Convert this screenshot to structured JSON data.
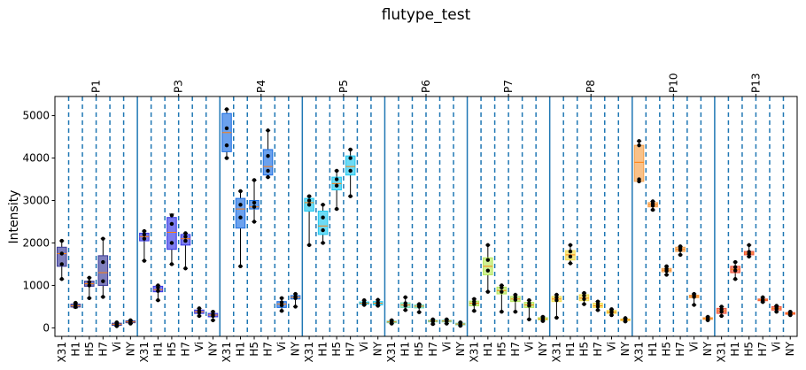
{
  "chart_data": {
    "type": "box",
    "title": "flutype_test",
    "ylabel": "Intensity",
    "xlabel": "",
    "ylim": [
      -200,
      5450
    ],
    "yticks": [
      0,
      1000,
      2000,
      3000,
      4000,
      5000
    ],
    "grid": false,
    "sample_labels": [
      "X31",
      "H1",
      "H5",
      "H7",
      "Vi",
      "NY"
    ],
    "groups": [
      {
        "name": "P1",
        "color": "#3b3b9a",
        "boxes": [
          {
            "q1": 1450,
            "median": 1750,
            "q3": 1900,
            "lo": 1150,
            "hi": 2050,
            "pts": [
              1150,
              1500,
              1750,
              2050
            ]
          },
          {
            "q1": 490,
            "median": 520,
            "q3": 560,
            "lo": 470,
            "hi": 590,
            "pts": [
              490,
              520,
              560,
              590
            ]
          },
          {
            "q1": 980,
            "median": 1040,
            "q3": 1100,
            "lo": 700,
            "hi": 1180,
            "pts": [
              700,
              1000,
              1080,
              1180
            ]
          },
          {
            "q1": 1000,
            "median": 1300,
            "q3": 1700,
            "lo": 730,
            "hi": 2100,
            "pts": [
              730,
              1100,
              1550,
              2100
            ]
          },
          {
            "q1": 60,
            "median": 85,
            "q3": 110,
            "lo": 40,
            "hi": 130,
            "pts": [
              40,
              80,
              100,
              130
            ]
          },
          {
            "q1": 120,
            "median": 140,
            "q3": 165,
            "lo": 100,
            "hi": 180,
            "pts": [
              100,
              130,
              150,
              180
            ]
          }
        ]
      },
      {
        "name": "P3",
        "color": "#3737e6",
        "boxes": [
          {
            "q1": 2050,
            "median": 2150,
            "q3": 2230,
            "lo": 1580,
            "hi": 2280,
            "pts": [
              1580,
              2100,
              2200,
              2280
            ]
          },
          {
            "q1": 850,
            "median": 900,
            "q3": 980,
            "lo": 650,
            "hi": 1000,
            "pts": [
              650,
              870,
              950,
              1000
            ]
          },
          {
            "q1": 1850,
            "median": 2250,
            "q3": 2600,
            "lo": 1500,
            "hi": 2680,
            "pts": [
              1500,
              2000,
              2450,
              2650
            ]
          },
          {
            "q1": 1950,
            "median": 2100,
            "q3": 2200,
            "lo": 1400,
            "hi": 2230,
            "pts": [
              1400,
              2050,
              2150,
              2230
            ]
          },
          {
            "q1": 340,
            "median": 380,
            "q3": 420,
            "lo": 280,
            "hi": 460,
            "pts": [
              280,
              360,
              400,
              460
            ]
          },
          {
            "q1": 260,
            "median": 300,
            "q3": 340,
            "lo": 180,
            "hi": 380,
            "pts": [
              180,
              280,
              320,
              380
            ]
          }
        ]
      },
      {
        "name": "P4",
        "color": "#1c6fe3",
        "boxes": [
          {
            "q1": 4150,
            "median": 4600,
            "q3": 5050,
            "lo": 4000,
            "hi": 5150,
            "pts": [
              4000,
              4300,
              4700,
              5150
            ]
          },
          {
            "q1": 2350,
            "median": 2800,
            "q3": 3050,
            "lo": 1450,
            "hi": 3220,
            "pts": [
              1450,
              2600,
              2900,
              3220
            ]
          },
          {
            "q1": 2800,
            "median": 2850,
            "q3": 3000,
            "lo": 2500,
            "hi": 3480,
            "pts": [
              2500,
              2850,
              2950,
              3480
            ]
          },
          {
            "q1": 3600,
            "median": 3800,
            "q3": 4200,
            "lo": 3550,
            "hi": 4650,
            "pts": [
              3550,
              3700,
              4050,
              4650
            ]
          },
          {
            "q1": 480,
            "median": 560,
            "q3": 620,
            "lo": 400,
            "hi": 700,
            "pts": [
              400,
              530,
              600,
              700
            ]
          },
          {
            "q1": 680,
            "median": 720,
            "q3": 760,
            "lo": 500,
            "hi": 800,
            "pts": [
              500,
              700,
              740,
              800
            ]
          }
        ]
      },
      {
        "name": "P5",
        "color": "#1fc8f0",
        "boxes": [
          {
            "q1": 2750,
            "median": 2950,
            "q3": 3050,
            "lo": 1950,
            "hi": 3100,
            "pts": [
              1950,
              2900,
              3000,
              3100
            ]
          },
          {
            "q1": 2200,
            "median": 2400,
            "q3": 2750,
            "lo": 2000,
            "hi": 2900,
            "pts": [
              2000,
              2300,
              2600,
              2900
            ]
          },
          {
            "q1": 3250,
            "median": 3400,
            "q3": 3550,
            "lo": 2800,
            "hi": 3700,
            "pts": [
              2800,
              3350,
              3500,
              3700
            ]
          },
          {
            "q1": 3600,
            "median": 3800,
            "q3": 4050,
            "lo": 3100,
            "hi": 4200,
            "pts": [
              3100,
              3700,
              4000,
              4200
            ]
          },
          {
            "q1": 560,
            "median": 580,
            "q3": 610,
            "lo": 540,
            "hi": 650,
            "pts": [
              540,
              570,
              600,
              650
            ]
          },
          {
            "q1": 540,
            "median": 580,
            "q3": 620,
            "lo": 520,
            "hi": 660,
            "pts": [
              520,
              560,
              600,
              660
            ]
          }
        ]
      },
      {
        "name": "P6",
        "color": "#6fe0b8",
        "boxes": [
          {
            "q1": 120,
            "median": 140,
            "q3": 160,
            "lo": 100,
            "hi": 180,
            "pts": [
              100,
              130,
              150,
              180
            ]
          },
          {
            "q1": 480,
            "median": 540,
            "q3": 590,
            "lo": 420,
            "hi": 720,
            "pts": [
              420,
              520,
              580,
              720
            ]
          },
          {
            "q1": 470,
            "median": 510,
            "q3": 540,
            "lo": 370,
            "hi": 560,
            "pts": [
              370,
              500,
              530,
              560
            ]
          },
          {
            "q1": 140,
            "median": 160,
            "q3": 180,
            "lo": 90,
            "hi": 200,
            "pts": [
              90,
              150,
              170,
              200
            ]
          },
          {
            "q1": 140,
            "median": 160,
            "q3": 180,
            "lo": 100,
            "hi": 200,
            "pts": [
              100,
              150,
              170,
              200
            ]
          },
          {
            "q1": 70,
            "median": 90,
            "q3": 110,
            "lo": 50,
            "hi": 130,
            "pts": [
              50,
              80,
              100,
              130
            ]
          }
        ]
      },
      {
        "name": "P7",
        "color": "#b5e85a",
        "boxes": [
          {
            "q1": 520,
            "median": 580,
            "q3": 630,
            "lo": 400,
            "hi": 680,
            "pts": [
              400,
              560,
              620,
              680
            ]
          },
          {
            "q1": 1250,
            "median": 1450,
            "q3": 1650,
            "lo": 850,
            "hi": 1950,
            "pts": [
              850,
              1350,
              1600,
              1950
            ]
          },
          {
            "q1": 800,
            "median": 880,
            "q3": 960,
            "lo": 380,
            "hi": 1000,
            "pts": [
              380,
              850,
              950,
              1000
            ]
          },
          {
            "q1": 620,
            "median": 680,
            "q3": 740,
            "lo": 380,
            "hi": 780,
            "pts": [
              380,
              660,
              720,
              780
            ]
          },
          {
            "q1": 480,
            "median": 540,
            "q3": 600,
            "lo": 200,
            "hi": 650,
            "pts": [
              200,
              520,
              580,
              650
            ]
          },
          {
            "q1": 190,
            "median": 210,
            "q3": 240,
            "lo": 160,
            "hi": 260,
            "pts": [
              160,
              200,
              230,
              260
            ]
          }
        ]
      },
      {
        "name": "P8",
        "color": "#f2dd4a",
        "boxes": [
          {
            "q1": 620,
            "median": 680,
            "q3": 740,
            "lo": 240,
            "hi": 780,
            "pts": [
              240,
              650,
              720,
              780
            ]
          },
          {
            "q1": 1600,
            "median": 1720,
            "q3": 1820,
            "lo": 1520,
            "hi": 1950,
            "pts": [
              1520,
              1680,
              1800,
              1950
            ]
          },
          {
            "q1": 640,
            "median": 700,
            "q3": 780,
            "lo": 560,
            "hi": 820,
            "pts": [
              560,
              680,
              760,
              820
            ]
          },
          {
            "q1": 480,
            "median": 520,
            "q3": 580,
            "lo": 420,
            "hi": 620,
            "pts": [
              420,
              500,
              560,
              620
            ]
          },
          {
            "q1": 340,
            "median": 370,
            "q3": 410,
            "lo": 300,
            "hi": 440,
            "pts": [
              300,
              360,
              400,
              440
            ]
          },
          {
            "q1": 170,
            "median": 190,
            "q3": 210,
            "lo": 150,
            "hi": 230,
            "pts": [
              150,
              180,
              200,
              230
            ]
          }
        ]
      },
      {
        "name": "P10",
        "color": "#f5a04a",
        "boxes": [
          {
            "q1": 3450,
            "median": 3900,
            "q3": 4300,
            "lo": 3450,
            "hi": 4400,
            "pts": [
              3450,
              3500,
              4300,
              4400
            ]
          },
          {
            "q1": 2850,
            "median": 2900,
            "q3": 2950,
            "lo": 2780,
            "hi": 2980,
            "pts": [
              2780,
              2880,
              2930,
              2980
            ]
          },
          {
            "q1": 1320,
            "median": 1360,
            "q3": 1400,
            "lo": 1250,
            "hi": 1450,
            "pts": [
              1250,
              1340,
              1390,
              1450
            ]
          },
          {
            "q1": 1800,
            "median": 1850,
            "q3": 1900,
            "lo": 1720,
            "hi": 1920,
            "pts": [
              1720,
              1830,
              1880,
              1920
            ]
          },
          {
            "q1": 710,
            "median": 740,
            "q3": 770,
            "lo": 540,
            "hi": 800,
            "pts": [
              540,
              730,
              760,
              800
            ]
          },
          {
            "q1": 200,
            "median": 220,
            "q3": 240,
            "lo": 180,
            "hi": 260,
            "pts": [
              180,
              210,
              230,
              260
            ]
          }
        ]
      },
      {
        "name": "P13",
        "color": "#f0523a",
        "boxes": [
          {
            "q1": 340,
            "median": 400,
            "q3": 460,
            "lo": 280,
            "hi": 500,
            "pts": [
              280,
              380,
              440,
              500
            ]
          },
          {
            "q1": 1300,
            "median": 1380,
            "q3": 1450,
            "lo": 1150,
            "hi": 1550,
            "pts": [
              1150,
              1350,
              1430,
              1550
            ]
          },
          {
            "q1": 1720,
            "median": 1760,
            "q3": 1800,
            "lo": 1680,
            "hi": 1950,
            "pts": [
              1680,
              1740,
              1790,
              1950
            ]
          },
          {
            "q1": 640,
            "median": 660,
            "q3": 680,
            "lo": 610,
            "hi": 720,
            "pts": [
              610,
              650,
              670,
              720
            ]
          },
          {
            "q1": 420,
            "median": 460,
            "q3": 500,
            "lo": 380,
            "hi": 520,
            "pts": [
              380,
              450,
              490,
              520
            ]
          },
          {
            "q1": 320,
            "median": 340,
            "q3": 360,
            "lo": 300,
            "hi": 380,
            "pts": [
              300,
              330,
              350,
              380
            ]
          }
        ]
      }
    ]
  }
}
